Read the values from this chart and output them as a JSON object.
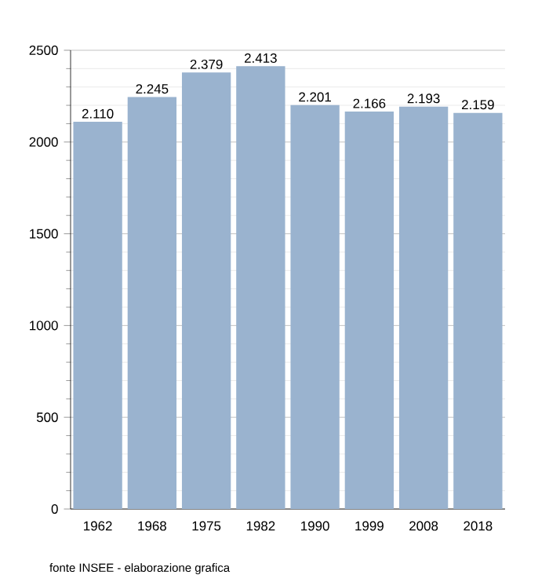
{
  "chart_data": {
    "type": "bar",
    "categories": [
      "1962",
      "1968",
      "1975",
      "1982",
      "1990",
      "1999",
      "2008",
      "2018"
    ],
    "values": [
      2110,
      2245,
      2379,
      2413,
      2201,
      2166,
      2193,
      2159
    ],
    "value_labels": [
      "2.110",
      "2.245",
      "2.379",
      "2.413",
      "2.201",
      "2.166",
      "2.193",
      "2.159"
    ],
    "color": "#9ab3cf",
    "ylim": [
      0,
      2500
    ],
    "yticks": [
      0,
      500,
      1000,
      1500,
      2000,
      2500
    ],
    "grid": "y",
    "annotations": [
      "fonte INSEE - elaborazione grafica"
    ]
  }
}
